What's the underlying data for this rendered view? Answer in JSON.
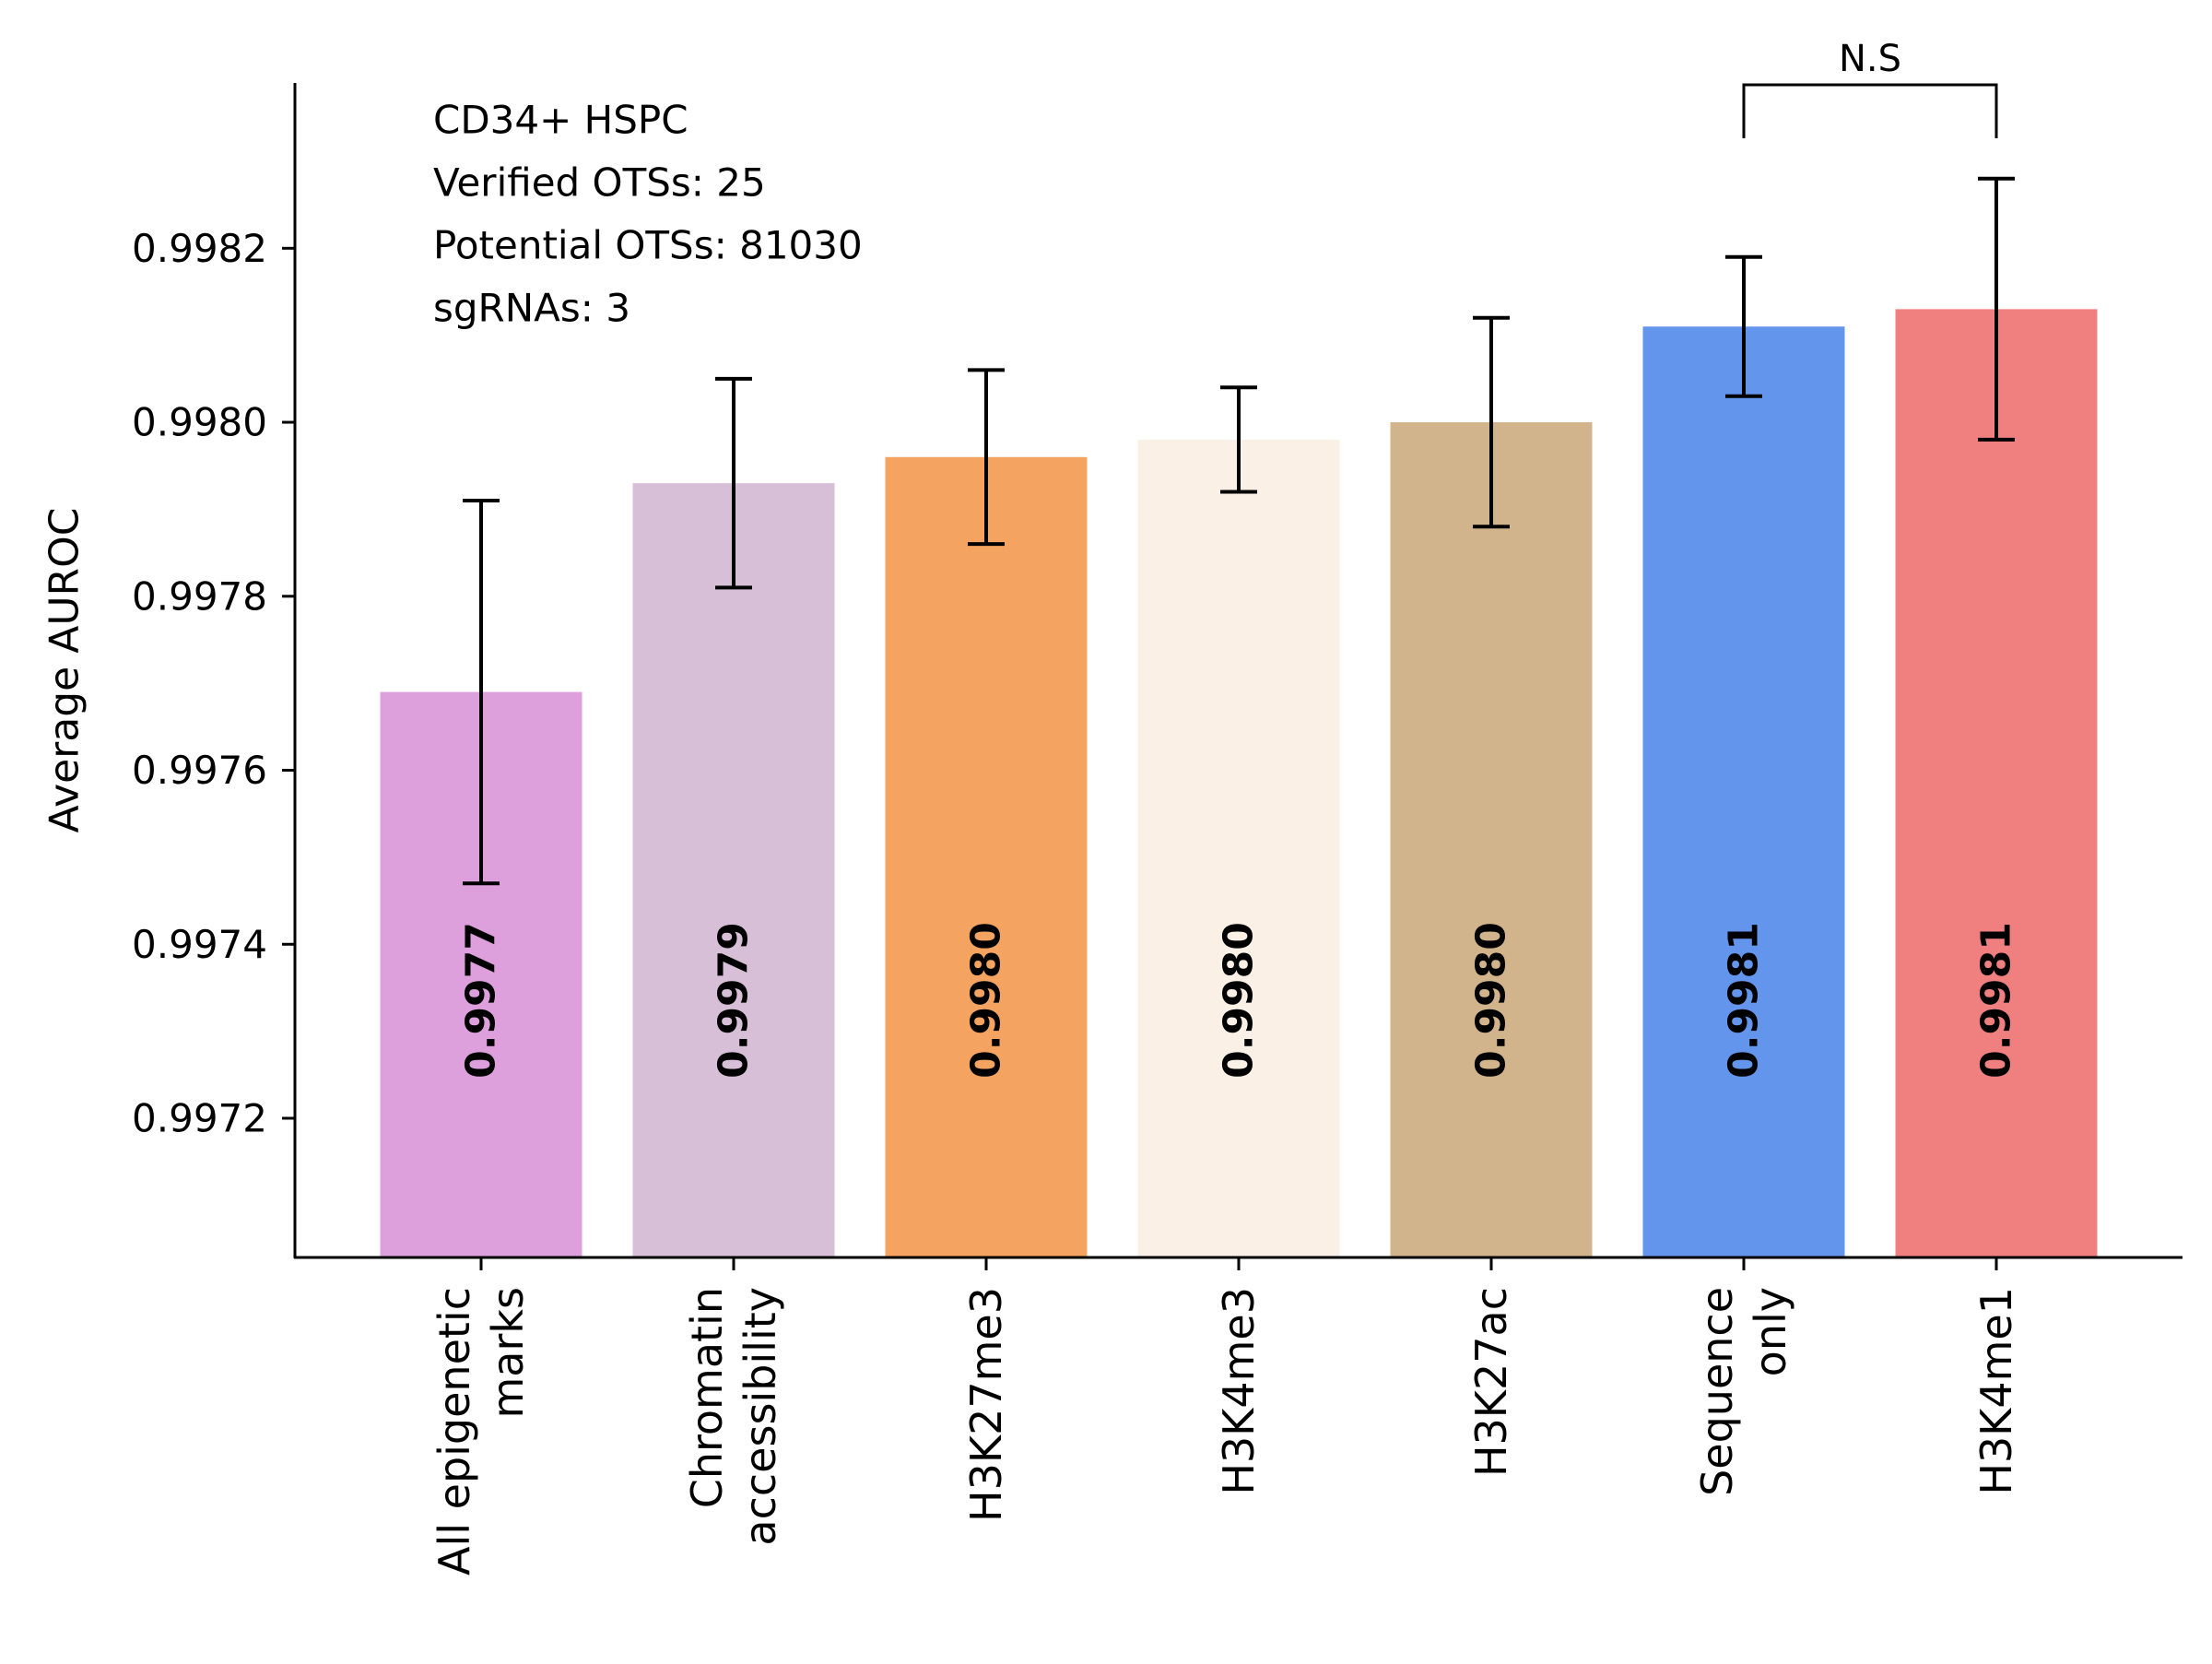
{
  "chart_data": {
    "type": "bar",
    "ylabel": "Average AUROC",
    "xlabel": "",
    "ylim": [
      0.99704,
      0.99839
    ],
    "yticks": [
      0.9972,
      0.9974,
      0.9976,
      0.9978,
      0.998,
      0.9982
    ],
    "ytick_labels": [
      "0.9972",
      "0.9974",
      "0.9976",
      "0.9978",
      "0.9980",
      "0.9982"
    ],
    "grid": false,
    "annotations": [
      "CD34+ HSPC",
      "Verified OTSs: 25",
      "Potential OTSs: 81030",
      "sgRNAs: 3"
    ],
    "categories": [
      [
        "All epigenetic",
        "marks"
      ],
      [
        "Chromatin",
        "accessibility"
      ],
      [
        "H3K27me3"
      ],
      [
        "H3K4me3"
      ],
      [
        "H3K27ac"
      ],
      [
        "Sequence",
        "only"
      ],
      [
        "H3K4me1"
      ]
    ],
    "values": [
      0.99769,
      0.99793,
      0.99796,
      0.99798,
      0.998,
      0.99811,
      0.99813
    ],
    "errors": [
      0.00022,
      0.00012,
      0.0001,
      6e-05,
      0.00012,
      8e-05,
      0.00015
    ],
    "value_labels": [
      "0.9977",
      "0.9979",
      "0.9980",
      "0.9980",
      "0.9980",
      "0.9981",
      "0.9981"
    ],
    "colors": [
      "#DDA0DD",
      "#D8BFD8",
      "#F4A460",
      "#FAF0E6",
      "#D2B48C",
      "#6495ED",
      "#F08080"
    ],
    "significance": {
      "label": "N.S",
      "between": [
        5,
        6
      ]
    }
  }
}
